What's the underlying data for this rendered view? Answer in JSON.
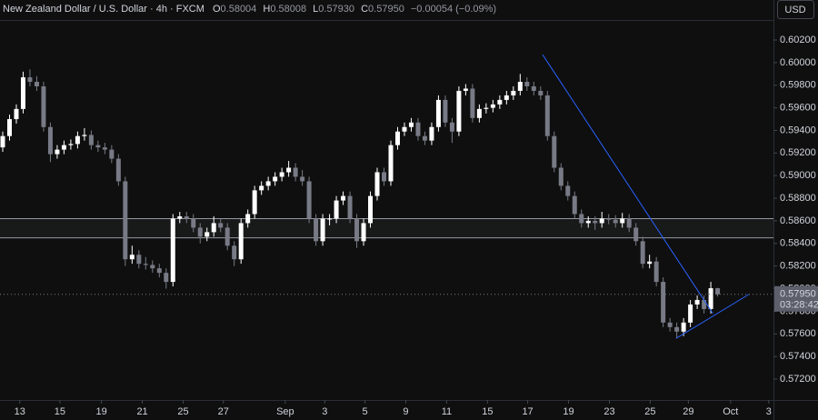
{
  "chart_data": {
    "type": "candlestick",
    "title": "New Zealand Dollar / U.S. Dollar · 4h · FXCM",
    "ohlc_labels": [
      "O",
      "H",
      "L",
      "C"
    ],
    "header_values": [
      "0.58004",
      "0.58008",
      "0.57930",
      "0.57950"
    ],
    "change": "−0.00054 (−0.09%)",
    "currency": "USD",
    "up_color": "#ffffff",
    "down_color": "#787b86",
    "open": [
      0.5925,
      0.5935,
      0.595,
      0.5959,
      0.5987,
      0.5983,
      0.5979,
      0.5943,
      0.5919,
      0.5923,
      0.5927,
      0.5928,
      0.5935,
      0.5936,
      0.5927,
      0.5925,
      0.5923,
      0.5915,
      0.5895,
      0.5826,
      0.583,
      0.5822,
      0.5821,
      0.5818,
      0.5814,
      0.5806,
      0.5862,
      0.5864,
      0.5862,
      0.5854,
      0.5846,
      0.585,
      0.5858,
      0.5854,
      0.5838,
      0.5826,
      0.5858,
      0.5866,
      0.5887,
      0.5891,
      0.5895,
      0.5899,
      0.5903,
      0.5907,
      0.5899,
      0.5895,
      0.5862,
      0.5842,
      0.5862,
      0.5862,
      0.5878,
      0.5882,
      0.5862,
      0.5842,
      0.5858,
      0.5882,
      0.5903,
      0.5895,
      0.5927,
      0.5939,
      0.5943,
      0.5947,
      0.5935,
      0.5931,
      0.5943,
      0.5967,
      0.5947,
      0.5939,
      0.5975,
      0.5977,
      0.5951,
      0.5959,
      0.596,
      0.5963,
      0.5967,
      0.5971,
      0.5975,
      0.5983,
      0.5979,
      0.5975,
      0.5971,
      0.5935,
      0.5907,
      0.5891,
      0.5882,
      0.5866,
      0.5858,
      0.586,
      0.5858,
      0.5862,
      0.5861,
      0.5858,
      0.5862,
      0.5854,
      0.5842,
      0.5822,
      0.5824,
      0.5806,
      0.577,
      0.5766,
      0.5762,
      0.577,
      0.5786,
      0.579,
      0.5782,
      0.58004
    ],
    "high": [
      0.5939,
      0.5954,
      0.5963,
      0.5992,
      0.5994,
      0.5988,
      0.5983,
      0.5947,
      0.5927,
      0.5931,
      0.5932,
      0.5939,
      0.5942,
      0.594,
      0.5931,
      0.5929,
      0.5927,
      0.5919,
      0.5899,
      0.5838,
      0.5834,
      0.5828,
      0.5825,
      0.5822,
      0.5818,
      0.5866,
      0.5868,
      0.5868,
      0.5866,
      0.5858,
      0.5854,
      0.5864,
      0.5862,
      0.5858,
      0.5842,
      0.5862,
      0.587,
      0.5891,
      0.5895,
      0.5899,
      0.5903,
      0.5907,
      0.5913,
      0.5911,
      0.5905,
      0.5899,
      0.5866,
      0.5866,
      0.5866,
      0.5882,
      0.5886,
      0.5886,
      0.5866,
      0.5862,
      0.5886,
      0.5907,
      0.5907,
      0.5931,
      0.5943,
      0.5947,
      0.5951,
      0.5951,
      0.5939,
      0.5947,
      0.5971,
      0.5971,
      0.5951,
      0.5979,
      0.5981,
      0.5981,
      0.5963,
      0.5964,
      0.5967,
      0.5971,
      0.5975,
      0.5979,
      0.599,
      0.5987,
      0.5983,
      0.5979,
      0.5975,
      0.5939,
      0.5911,
      0.5895,
      0.5886,
      0.587,
      0.5864,
      0.5864,
      0.5868,
      0.5866,
      0.5865,
      0.5867,
      0.5866,
      0.5858,
      0.5846,
      0.583,
      0.5828,
      0.581,
      0.5774,
      0.577,
      0.5774,
      0.579,
      0.5794,
      0.5794,
      0.5806,
      0.58008
    ],
    "low": [
      0.5921,
      0.5931,
      0.5946,
      0.5955,
      0.5979,
      0.5975,
      0.5939,
      0.5912,
      0.5915,
      0.5919,
      0.5923,
      0.5924,
      0.5931,
      0.5923,
      0.5921,
      0.5919,
      0.5911,
      0.5891,
      0.582,
      0.5822,
      0.5818,
      0.5817,
      0.5814,
      0.581,
      0.58,
      0.5802,
      0.5858,
      0.5858,
      0.585,
      0.584,
      0.5842,
      0.5846,
      0.585,
      0.5834,
      0.582,
      0.5822,
      0.5854,
      0.5862,
      0.5883,
      0.5887,
      0.5891,
      0.5895,
      0.5899,
      0.5895,
      0.5891,
      0.5858,
      0.5838,
      0.5838,
      0.5856,
      0.5858,
      0.5874,
      0.5858,
      0.5836,
      0.5838,
      0.5854,
      0.5878,
      0.5891,
      0.5891,
      0.5923,
      0.5935,
      0.5939,
      0.5931,
      0.5927,
      0.5927,
      0.5939,
      0.5943,
      0.5929,
      0.5935,
      0.5971,
      0.5947,
      0.5947,
      0.5955,
      0.5956,
      0.5959,
      0.5963,
      0.5967,
      0.5971,
      0.5975,
      0.5971,
      0.5967,
      0.5931,
      0.5903,
      0.5887,
      0.5878,
      0.5862,
      0.5854,
      0.5854,
      0.5852,
      0.5854,
      0.5857,
      0.5854,
      0.5854,
      0.585,
      0.5838,
      0.5818,
      0.5818,
      0.5802,
      0.5766,
      0.5762,
      0.5756,
      0.5758,
      0.5766,
      0.5782,
      0.5778,
      0.5778,
      0.5793
    ],
    "close": [
      0.5935,
      0.595,
      0.5959,
      0.5987,
      0.5983,
      0.5979,
      0.5943,
      0.5919,
      0.5923,
      0.5927,
      0.5928,
      0.5935,
      0.5936,
      0.5927,
      0.5925,
      0.5923,
      0.5915,
      0.5895,
      0.5826,
      0.583,
      0.5822,
      0.5821,
      0.5818,
      0.5814,
      0.5806,
      0.5862,
      0.5864,
      0.5862,
      0.5854,
      0.5846,
      0.585,
      0.5858,
      0.5854,
      0.5838,
      0.5826,
      0.5858,
      0.5866,
      0.5887,
      0.5891,
      0.5895,
      0.5899,
      0.5903,
      0.5907,
      0.5899,
      0.5895,
      0.5862,
      0.5842,
      0.5862,
      0.5862,
      0.5878,
      0.5882,
      0.5862,
      0.5842,
      0.5858,
      0.5882,
      0.5903,
      0.5895,
      0.5927,
      0.5939,
      0.5943,
      0.5947,
      0.5935,
      0.5931,
      0.5943,
      0.5967,
      0.5947,
      0.5939,
      0.5975,
      0.5977,
      0.5951,
      0.5959,
      0.596,
      0.5963,
      0.5967,
      0.5971,
      0.5975,
      0.5983,
      0.5979,
      0.5975,
      0.5971,
      0.5935,
      0.5907,
      0.5891,
      0.5882,
      0.5866,
      0.5858,
      0.586,
      0.5858,
      0.5862,
      0.5861,
      0.5858,
      0.5862,
      0.5854,
      0.5842,
      0.5822,
      0.5824,
      0.5806,
      0.577,
      0.5766,
      0.5762,
      0.577,
      0.5786,
      0.579,
      0.5782,
      0.58004,
      0.5795
    ],
    "xlim": [
      -0.4,
      113.2
    ],
    "xticks": [
      {
        "value": 2.5,
        "label": "13"
      },
      {
        "value": 8.4,
        "label": "15"
      },
      {
        "value": 14.5,
        "label": "19"
      },
      {
        "value": 20.5,
        "label": "21"
      },
      {
        "value": 26.5,
        "label": "25"
      },
      {
        "value": 32.4,
        "label": "27"
      },
      {
        "value": 41.5,
        "label": "Sep"
      },
      {
        "value": 47.3,
        "label": "3"
      },
      {
        "value": 53.2,
        "label": "5"
      },
      {
        "value": 59.2,
        "label": "9"
      },
      {
        "value": 65.2,
        "label": "11"
      },
      {
        "value": 71.2,
        "label": "15"
      },
      {
        "value": 77.1,
        "label": "17"
      },
      {
        "value": 83.1,
        "label": "19"
      },
      {
        "value": 89.1,
        "label": "23"
      },
      {
        "value": 95.1,
        "label": "25"
      },
      {
        "value": 100.7,
        "label": "29"
      },
      {
        "value": 106.9,
        "label": "Oct"
      },
      {
        "value": 112.5,
        "label": "3"
      }
    ],
    "ylim": [
      0.57015,
      0.60377
    ],
    "yticks": [
      {
        "value": 0.602,
        "label": "0.60200"
      },
      {
        "value": 0.6,
        "label": "0.60000"
      },
      {
        "value": 0.598,
        "label": "0.59800"
      },
      {
        "value": 0.596,
        "label": "0.59600"
      },
      {
        "value": 0.594,
        "label": "0.59400"
      },
      {
        "value": 0.592,
        "label": "0.59200"
      },
      {
        "value": 0.59,
        "label": "0.59000"
      },
      {
        "value": 0.588,
        "label": "0.58800"
      },
      {
        "value": 0.586,
        "label": "0.58600"
      },
      {
        "value": 0.584,
        "label": "0.58400"
      },
      {
        "value": 0.582,
        "label": "0.58200"
      },
      {
        "value": 0.58,
        "label": "0.58000"
      },
      {
        "value": 0.578,
        "label": "0.57800"
      },
      {
        "value": 0.576,
        "label": "0.57600"
      },
      {
        "value": 0.574,
        "label": "0.57400"
      },
      {
        "value": 0.572,
        "label": "0.57200"
      }
    ],
    "zone": [
      0.5845,
      0.5862
    ],
    "trendline_color": "#2962ff",
    "trendlines": [
      {
        "x": [
          79.3,
          104.3
        ],
        "y": [
          0.6007,
          0.5778
        ]
      },
      {
        "x": [
          98.9,
          109.6
        ],
        "y": [
          0.5756,
          0.5795
        ]
      }
    ],
    "last_price": {
      "value": 0.5795,
      "label": "0.57950"
    },
    "countdown": "03:28:42"
  }
}
